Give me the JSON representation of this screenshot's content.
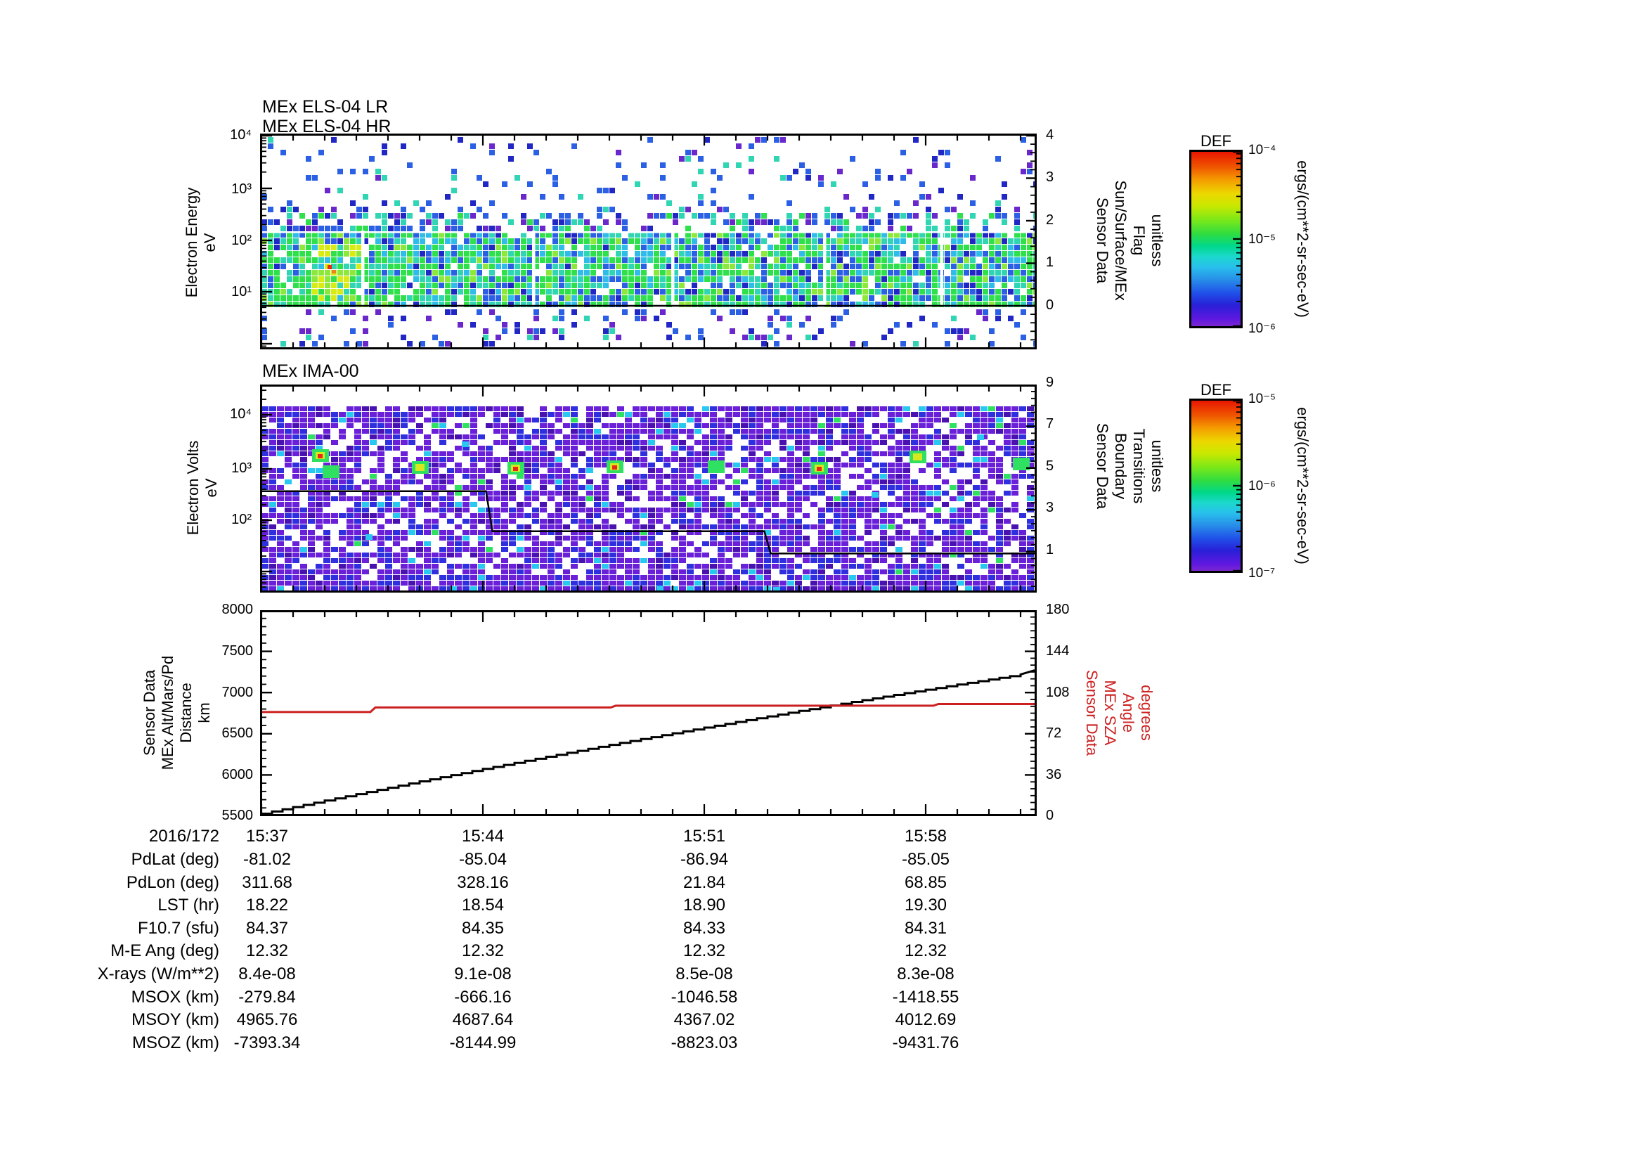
{
  "panel1": {
    "title_lr": "MEx ELS-04 LR",
    "title_hr": "MEx ELS-04 HR",
    "ylabel": [
      "Electron Energy",
      "eV"
    ],
    "yticks": [
      "10⁴",
      "10³",
      "10²",
      "10¹"
    ],
    "right_ticks": [
      "4",
      "3",
      "2",
      "1",
      "0"
    ],
    "right_label": [
      "Sensor Data",
      "Sun/Surface/MEx",
      "Flag",
      "unitless"
    ]
  },
  "panel2": {
    "title": "MEx IMA-00",
    "ylabel": [
      "Electron Volts",
      "eV"
    ],
    "yticks": [
      "10⁴",
      "10³",
      "10²"
    ],
    "right_ticks": [
      "9",
      "7",
      "5",
      "3",
      "1"
    ],
    "right_label": [
      "Sensor Data",
      "Boundary",
      "Transitions",
      "unitless"
    ]
  },
  "panel3": {
    "ylabel": [
      "Sensor Data",
      "MEx Alt/Mars/Pd",
      "Distance",
      "km"
    ],
    "yticks": [
      "8000",
      "7500",
      "7000",
      "6500",
      "6000",
      "5500"
    ],
    "right_ticks": [
      "180",
      "144",
      "108",
      "72",
      "36",
      "0"
    ],
    "right_label": [
      "Sensor Data",
      "MEx SZA",
      "Angle",
      "degrees"
    ],
    "red_color": "#cc2020"
  },
  "colorbar1": {
    "title": "DEF",
    "ticks": [
      "10⁻⁴",
      "10⁻⁵",
      "10⁻⁶"
    ],
    "unit": "ergs/(cm**2-sr-sec-eV)"
  },
  "colorbar2": {
    "title": "DEF",
    "ticks": [
      "10⁻⁵",
      "10⁻⁶",
      "10⁻⁷"
    ],
    "unit": "ergs/(cm**2-sr-sec-eV)"
  },
  "xaxis": {
    "date": "2016/172",
    "labels": [
      "15:37",
      "15:44",
      "15:51",
      "15:58"
    ]
  },
  "table": {
    "rows": [
      {
        "label": "PdLat (deg)",
        "values": [
          "-81.02",
          "-85.04",
          "-86.94",
          "-85.05"
        ]
      },
      {
        "label": "PdLon (deg)",
        "values": [
          "311.68",
          "328.16",
          "21.84",
          "68.85"
        ]
      },
      {
        "label": "LST (hr)",
        "values": [
          "18.22",
          "18.54",
          "18.90",
          "19.30"
        ]
      },
      {
        "label": "F10.7 (sfu)",
        "values": [
          "84.37",
          "84.35",
          "84.33",
          "84.31"
        ]
      },
      {
        "label": "M-E Ang (deg)",
        "values": [
          "12.32",
          "12.32",
          "12.32",
          "12.32"
        ]
      },
      {
        "label": "X-rays (W/m**2)",
        "values": [
          "8.4e-08",
          "9.1e-08",
          "8.5e-08",
          "8.3e-08"
        ]
      },
      {
        "label": "MSOX (km)",
        "values": [
          "-279.84",
          "-666.16",
          "-1046.58",
          "-1418.55"
        ]
      },
      {
        "label": "MSOY (km)",
        "values": [
          "4965.76",
          "4687.64",
          "4367.02",
          "4012.69"
        ]
      },
      {
        "label": "MSOZ (km)",
        "values": [
          "-7393.34",
          "-8144.99",
          "-8823.03",
          "-9431.76"
        ]
      }
    ]
  },
  "chart_data": [
    {
      "type": "heatmap",
      "title": "MEx ELS-04 LR / MEx ELS-04 HR electron energy spectrogram",
      "xlabel": "time (2016/172, 15:37 to ~16:01)",
      "ylabel": "Electron Energy eV",
      "y_range_eV": [
        1,
        10000
      ],
      "log_y": true,
      "value_unit": "ergs/(cm**2-sr-sec-eV)",
      "value_range": [
        1e-06,
        0.0001
      ],
      "right_axis": {
        "label": "Sensor Data Sun/Surface/MEx Flag unitless",
        "range": [
          0,
          4
        ],
        "flag_value": 0
      },
      "gap_minutes": [
        3.2,
        8.6,
        13.0,
        17.8,
        21.5
      ],
      "features": [
        "dense green/cyan flux band between ~7 eV and ~150 eV for the whole interval",
        "yellow/orange flux enhancement near 15:38-15:40 between 10 and 100 eV",
        "sparse blue/purple counts above 200 eV up to 10 keV",
        "black flag line constant at 0"
      ]
    },
    {
      "type": "heatmap",
      "title": "MEx IMA-00 ion spectrogram",
      "xlabel": "time (2016/172, 15:37 to ~16:01)",
      "ylabel": "Electron Volts eV",
      "y_range_eV": [
        5,
        30000
      ],
      "log_y": true,
      "value_unit": "ergs/(cm**2-sr-sec-eV)",
      "value_range": [
        1e-07,
        1e-05
      ],
      "right_axis": {
        "label": "Sensor Data Boundary Transitions unitless",
        "range": [
          0,
          9
        ]
      },
      "boundary_line_steps_eV": [
        {
          "t_min": 0,
          "eV": 370
        },
        {
          "t_min": 7.3,
          "eV": 62
        },
        {
          "t_min": 16.1,
          "eV": 23
        }
      ],
      "features": [
        "noisy purple/blue mosaic across 10 eV - 30 keV",
        "row of small green/yellow/red ion-beam hot spots near 1-2 keV, repeating ~ every 3 min",
        "dense purple band at the lowest energies"
      ]
    },
    {
      "type": "line",
      "x_minutes_after_1537": [
        0,
        1,
        2,
        3,
        4,
        5,
        6,
        7,
        8,
        9,
        10,
        11,
        12,
        13,
        14,
        15,
        16,
        17,
        18,
        19,
        20,
        21,
        22,
        23,
        24
      ],
      "series": [
        {
          "name": "MEx Alt/Mars/Pd Distance",
          "unit": "km",
          "axis": "left",
          "color": "#000000",
          "style": "staircase",
          "values": [
            5530,
            5610,
            5689,
            5768,
            5845,
            5922,
            5998,
            6073,
            6147,
            6221,
            6293,
            6365,
            6436,
            6506,
            6575,
            6643,
            6711,
            6777,
            6843,
            6908,
            6972,
            7035,
            7097,
            7159,
            7219
          ]
        },
        {
          "name": "MEx SZA Angle",
          "unit": "degrees",
          "axis": "right",
          "color": "#cc2020",
          "style": "step",
          "step_points": [
            {
              "t": 0,
              "value": 91
            },
            {
              "t": 3.6,
              "value": 95
            },
            {
              "t": 11.2,
              "value": 96.5
            },
            {
              "t": 21.4,
              "value": 98
            }
          ]
        }
      ],
      "ylim_left": [
        5500,
        8000
      ],
      "ylim_right": [
        0,
        180
      ],
      "x_tick_labels": [
        "15:37",
        "15:44",
        "15:51",
        "15:58"
      ]
    }
  ]
}
